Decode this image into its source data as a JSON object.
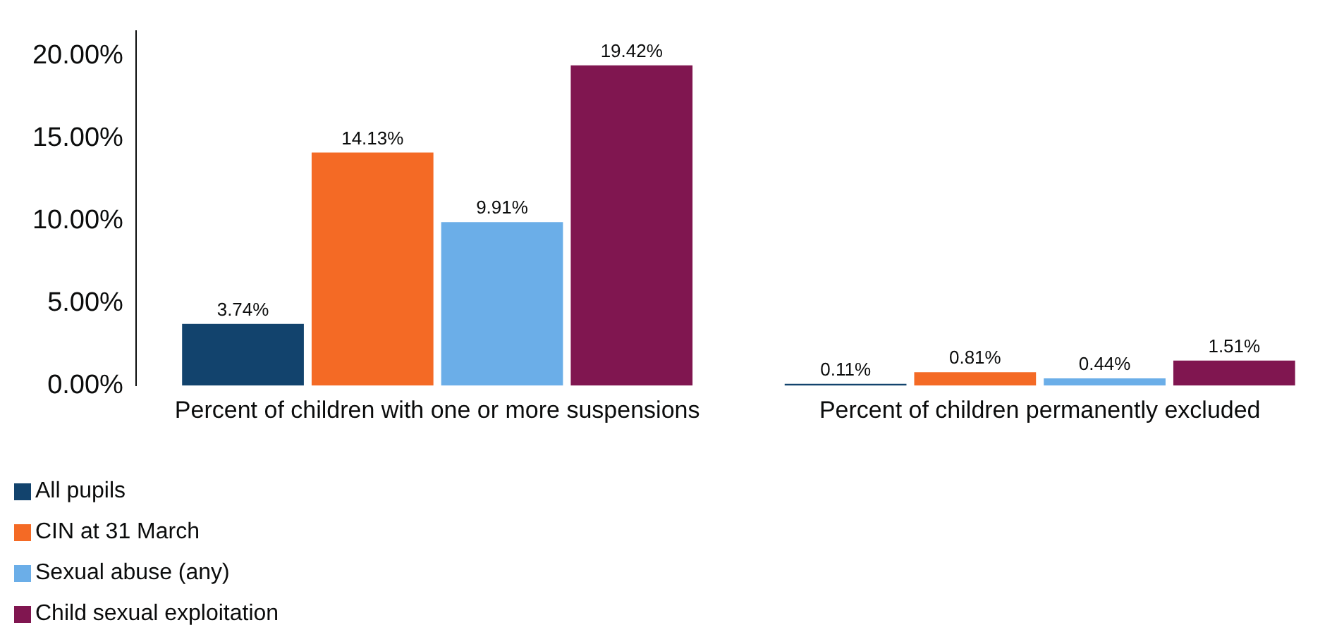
{
  "chart_data": {
    "type": "bar",
    "categories": [
      "Percent of children with one or more suspensions",
      "Percent of children permanently excluded"
    ],
    "series": [
      {
        "name": "All pupils",
        "color": "#12436d",
        "values": [
          3.74,
          0.11
        ],
        "value_labels": [
          "3.74%",
          "0.11%"
        ]
      },
      {
        "name": "CIN at 31 March",
        "color": "#f46a25",
        "values": [
          14.13,
          0.81
        ],
        "value_labels": [
          "14.13%",
          "0.81%"
        ]
      },
      {
        "name": "Sexual abuse (any)",
        "color": "#6baee8",
        "values": [
          9.91,
          0.44
        ],
        "value_labels": [
          "9.91%",
          "0.44%"
        ]
      },
      {
        "name": "Child sexual exploitation",
        "color": "#801650",
        "values": [
          19.42,
          1.51
        ],
        "value_labels": [
          "19.42%",
          "1.51%"
        ]
      }
    ],
    "ylim": [
      0,
      21.5
    ],
    "yticks": [
      {
        "value": 0,
        "label": "0.00%"
      },
      {
        "value": 5,
        "label": "5.00%"
      },
      {
        "value": 10,
        "label": "10.00%"
      },
      {
        "value": 15,
        "label": "15.00%"
      },
      {
        "value": 20,
        "label": "20.00%"
      }
    ],
    "grid": false,
    "legend": "bottom left"
  }
}
